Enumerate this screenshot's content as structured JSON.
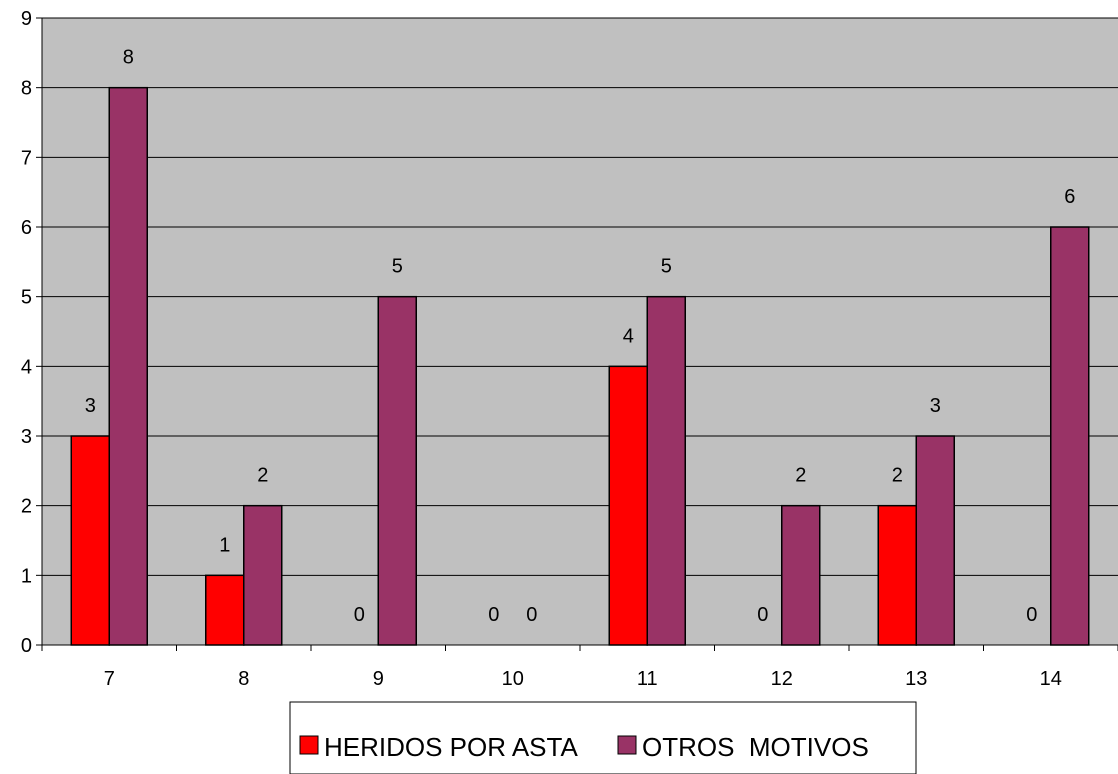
{
  "chart_data": {
    "type": "bar",
    "categories": [
      "7",
      "8",
      "9",
      "10",
      "11",
      "12",
      "13",
      "14"
    ],
    "series": [
      {
        "name": "HERIDOS POR ASTA",
        "values": [
          3,
          1,
          0,
          0,
          4,
          0,
          2,
          0
        ],
        "color": "#FF0000"
      },
      {
        "name": "OTROS  MOTIVOS",
        "values": [
          8,
          2,
          5,
          0,
          5,
          2,
          3,
          6
        ],
        "color": "#993366"
      }
    ],
    "title": "",
    "xlabel": "",
    "ylabel": "",
    "ylim": [
      0,
      9
    ],
    "yticks": [
      0,
      1,
      2,
      3,
      4,
      5,
      6,
      7,
      8,
      9
    ],
    "plot_background": "#C0C0C0",
    "grid": true,
    "legend_position": "bottom"
  }
}
